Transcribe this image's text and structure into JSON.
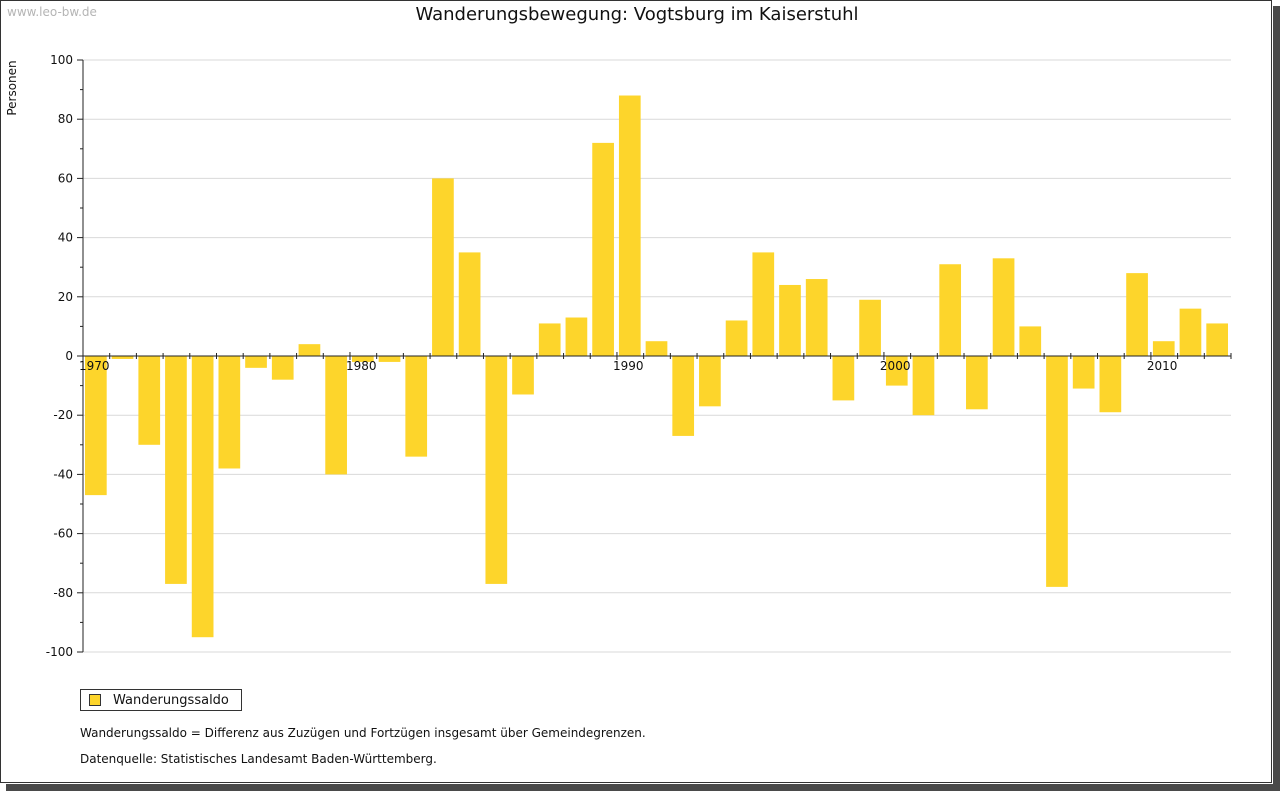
{
  "watermark": "www.leo-bw.de",
  "colors": {
    "bar": "#fdd52b",
    "grid": "#d9d9d9",
    "axis": "#222222"
  },
  "legend": {
    "label": "Wanderungssaldo"
  },
  "notes": {
    "definition": "Wanderungssaldo = Differenz aus Zuzügen und Fortzügen insgesamt über Gemeindegrenzen.",
    "source": "Datenquelle: Statistisches Landesamt Baden-Württemberg."
  },
  "chart_data": {
    "type": "bar",
    "title": "Wanderungsbewegung: Vogtsburg im Kaiserstuhl",
    "xlabel": "",
    "ylabel": "Personen",
    "ylim": [
      -100,
      100
    ],
    "yticks": [
      -100,
      -80,
      -60,
      -40,
      -20,
      0,
      20,
      40,
      60,
      80,
      100
    ],
    "xtick_labels": [
      "1970",
      "1980",
      "1990",
      "2000",
      "2010"
    ],
    "grid": true,
    "legend_position": "bottom-left",
    "series": [
      {
        "name": "Wanderungssaldo",
        "categories": [
          "1970",
          "1971",
          "1972",
          "1973",
          "1974",
          "1975",
          "1976",
          "1977",
          "1978",
          "1979",
          "1980",
          "1981",
          "1982",
          "1983",
          "1984",
          "1985",
          "1986",
          "1987",
          "1988",
          "1989",
          "1990",
          "1991",
          "1992",
          "1993",
          "1994",
          "1995",
          "1996",
          "1997",
          "1998",
          "1999",
          "2000",
          "2001",
          "2002",
          "2003",
          "2004",
          "2005",
          "2006",
          "2007",
          "2008",
          "2009",
          "2010",
          "2011",
          "2012"
        ],
        "values": [
          -47,
          -1,
          -30,
          -77,
          -95,
          -38,
          -4,
          -8,
          4,
          -40,
          -2,
          -2,
          -34,
          60,
          35,
          -77,
          -13,
          11,
          13,
          72,
          88,
          5,
          -27,
          -17,
          12,
          35,
          24,
          26,
          -15,
          19,
          -10,
          -20,
          31,
          -18,
          33,
          10,
          -78,
          -11,
          -19,
          28,
          5,
          16,
          11
        ]
      }
    ]
  }
}
